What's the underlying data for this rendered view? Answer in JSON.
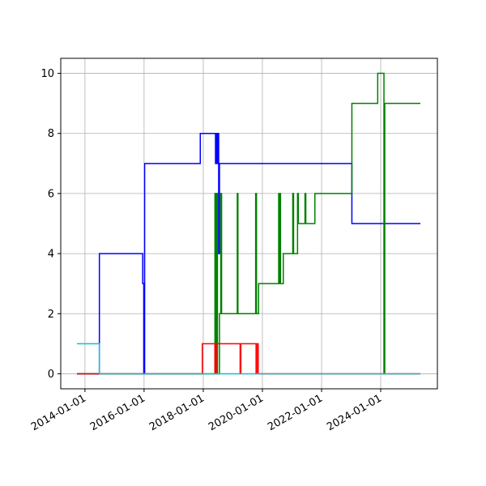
{
  "chart_data": {
    "type": "step",
    "xlim": [
      "2013-03-08",
      "2025-12-01"
    ],
    "xticks": [
      "2014-01-01",
      "2016-01-01",
      "2018-01-01",
      "2020-01-01",
      "2022-01-01",
      "2024-01-01"
    ],
    "ylim": [
      -0.5,
      10.5
    ],
    "yticks": [
      0,
      2,
      4,
      6,
      8,
      10
    ],
    "grid": true,
    "series": [
      {
        "color": "#0000ff",
        "x": [
          "2013-09-24",
          "2014-06-28",
          "2015-12-15",
          "2015-12-28",
          "2016-01-08",
          "2017-11-25",
          "2018-06-01",
          "2018-06-10",
          "2018-06-20",
          "2018-07-01",
          "2018-07-10",
          "2018-07-20",
          "2023-01-10",
          "2025-05-05"
        ],
        "values": [
          0,
          4,
          3,
          0,
          7,
          8,
          7,
          8,
          7,
          8,
          4,
          7,
          5,
          5
        ]
      },
      {
        "color": "#008000",
        "x": [
          "2013-09-24",
          "2018-05-25",
          "2018-06-05",
          "2018-06-15",
          "2018-06-25",
          "2018-07-20",
          "2018-08-05",
          "2018-08-15",
          "2019-02-25",
          "2019-03-05",
          "2019-10-10",
          "2019-10-20",
          "2019-11-15",
          "2020-07-20",
          "2020-07-28",
          "2020-08-05",
          "2020-08-12",
          "2020-09-15",
          "2021-01-10",
          "2021-01-20",
          "2021-03-10",
          "2021-03-20",
          "2021-06-10",
          "2021-06-20",
          "2021-10-10",
          "2023-01-10",
          "2023-11-25",
          "2024-02-10",
          "2024-02-20",
          "2025-05-05"
        ],
        "values": [
          0,
          6,
          0,
          6,
          0,
          2,
          6,
          2,
          6,
          2,
          6,
          2,
          3,
          6,
          3,
          6,
          3,
          4,
          6,
          4,
          6,
          5,
          6,
          5,
          6,
          9,
          10,
          0,
          9,
          9
        ]
      },
      {
        "color": "#ff0000",
        "x": [
          "2013-09-24",
          "2017-12-20",
          "2018-05-25",
          "2018-06-15",
          "2019-04-01",
          "2019-04-10",
          "2019-10-15",
          "2019-10-25",
          "2019-11-10",
          "2025-05-05"
        ],
        "values": [
          0,
          1,
          0,
          1,
          0,
          1,
          0,
          1,
          0,
          0
        ]
      },
      {
        "color": "#17becf",
        "x": [
          "2013-09-24",
          "2014-06-28",
          "2025-05-05"
        ],
        "values": [
          1,
          0,
          0
        ]
      }
    ]
  }
}
